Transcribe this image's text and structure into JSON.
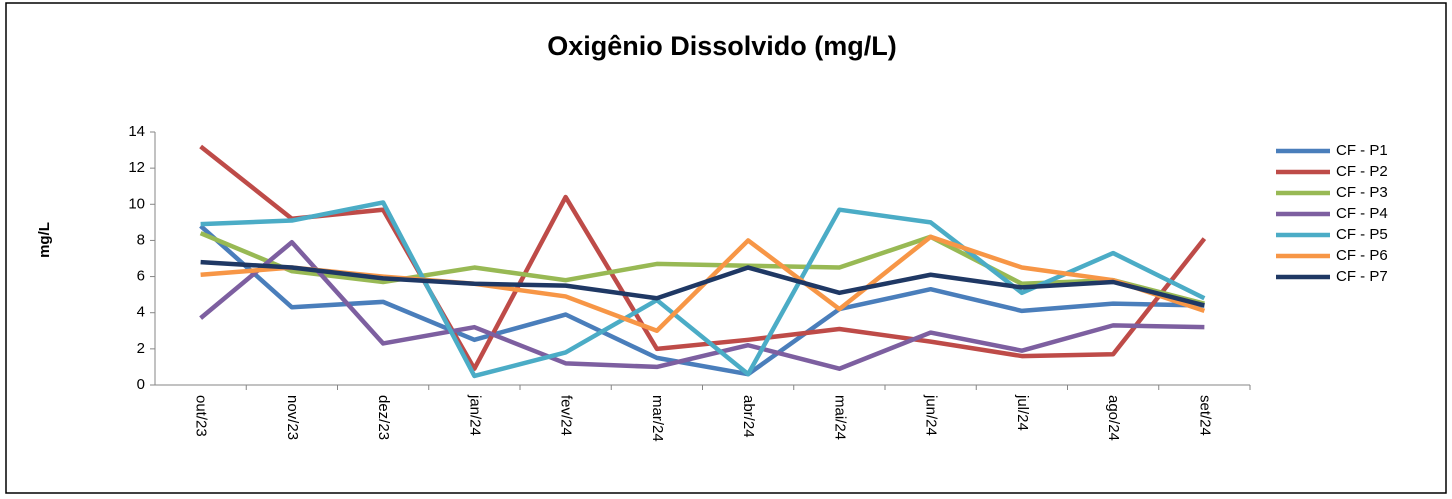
{
  "chart_data": {
    "type": "line",
    "title": "Oxigênio Dissolvido (mg/L)",
    "y_label": "mg/L",
    "categories": [
      "out/23",
      "nov/23",
      "dez/23",
      "jan/24",
      "fev/24",
      "mar/24",
      "abr/24",
      "mai/24",
      "jun/24",
      "jul/24",
      "ago/24",
      "set/24"
    ],
    "ylim": [
      0,
      14
    ],
    "yticks": [
      0,
      2,
      4,
      6,
      8,
      10,
      12,
      14
    ],
    "grid": false,
    "legend": "right",
    "series": [
      {
        "name": "CF - P1",
        "color": "#4a7ebb",
        "values": [
          8.8,
          4.3,
          4.6,
          2.5,
          3.9,
          1.5,
          0.6,
          4.2,
          5.3,
          4.1,
          4.5,
          4.4
        ]
      },
      {
        "name": "CF - P2",
        "color": "#be4b48",
        "values": [
          13.2,
          9.2,
          9.7,
          0.9,
          10.4,
          2.0,
          2.5,
          3.1,
          2.4,
          1.6,
          1.7,
          8.1
        ]
      },
      {
        "name": "CF - P3",
        "color": "#98b954",
        "values": [
          8.4,
          6.3,
          5.7,
          6.5,
          5.8,
          6.7,
          6.6,
          6.5,
          8.2,
          5.6,
          5.8,
          4.5
        ]
      },
      {
        "name": "CF - P4",
        "color": "#7d5fa0",
        "values": [
          3.7,
          7.9,
          2.3,
          3.2,
          1.2,
          1.0,
          2.2,
          0.9,
          2.9,
          1.9,
          3.3,
          3.2
        ]
      },
      {
        "name": "CF - P5",
        "color": "#4bacc6",
        "values": [
          8.9,
          9.1,
          10.1,
          0.5,
          1.8,
          4.7,
          0.6,
          9.7,
          9.0,
          5.1,
          7.3,
          4.8
        ]
      },
      {
        "name": "CF - P6",
        "color": "#f79646",
        "values": [
          6.1,
          6.5,
          6.0,
          5.6,
          4.9,
          3.0,
          8.0,
          4.2,
          8.2,
          6.5,
          5.8,
          4.1
        ]
      },
      {
        "name": "CF - P7",
        "color": "#1f3864",
        "values": [
          6.8,
          6.5,
          5.9,
          5.6,
          5.5,
          4.8,
          6.5,
          5.1,
          6.1,
          5.4,
          5.7,
          4.4
        ]
      }
    ]
  }
}
